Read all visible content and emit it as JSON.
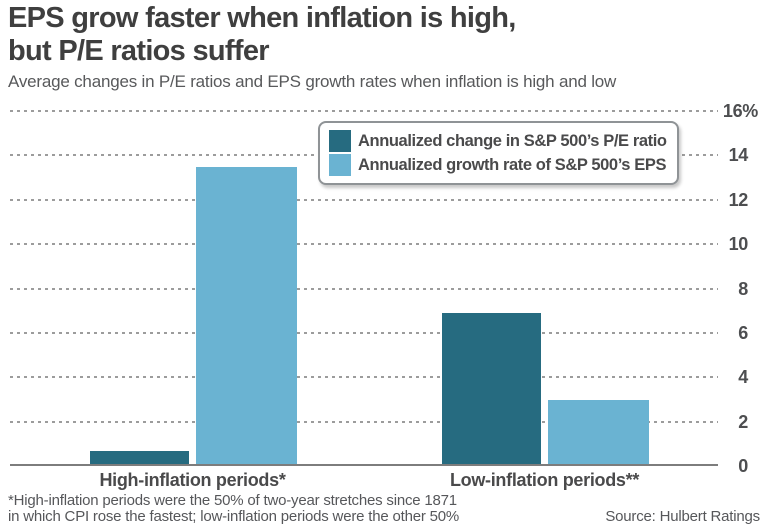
{
  "header": {
    "title_lines": [
      "EPS grow faster when inflation is high,",
      "but P/E ratios suffer"
    ],
    "subtitle": "Average changes in P/E ratios and EPS growth rates when inflation is high and low"
  },
  "chart_data": {
    "type": "bar",
    "title": "EPS grow faster when inflation is high, but P/E ratios suffer",
    "subtitle": "Average changes in P/E ratios and EPS growth rates when inflation is high and low",
    "categories": [
      "High-inflation periods*",
      "Low-inflation periods**"
    ],
    "series": [
      {
        "name": "Annualized change in S&P 500’s P/E ratio",
        "color": "#266b80",
        "values": [
          0.6,
          6.8
        ]
      },
      {
        "name": "Annualized growth rate of S&P 500’s EPS",
        "color": "#6ab3d2",
        "values": [
          13.4,
          2.9
        ]
      }
    ],
    "unit": "%",
    "ylim": [
      0,
      16
    ],
    "yticks": [
      {
        "v": 0,
        "label": "0"
      },
      {
        "v": 2,
        "label": "2"
      },
      {
        "v": 4,
        "label": "4"
      },
      {
        "v": 6,
        "label": "6"
      },
      {
        "v": 8,
        "label": "8"
      },
      {
        "v": 10,
        "label": "10"
      },
      {
        "v": 12,
        "label": "12"
      },
      {
        "v": 14,
        "label": "14"
      },
      {
        "v": 16,
        "label": "16%"
      }
    ],
    "grid": "horizontal-dotted",
    "legend_position": "top-right",
    "axis_side": "right"
  },
  "footer": {
    "footnote_lines": [
      "*High-inflation periods were the 50% of two-year stretches since 1871",
      "in which CPI rose the fastest; low-inflation periods were the other 50%"
    ],
    "source": "Source: Hulbert Ratings"
  },
  "colors": {
    "series_dark": "#266b80",
    "series_light": "#6ab3d2",
    "title_text": "#3f3f3f",
    "body_text": "#56575a",
    "gridline": "#9c9c9c",
    "axis_line": "#7d7d7d"
  }
}
